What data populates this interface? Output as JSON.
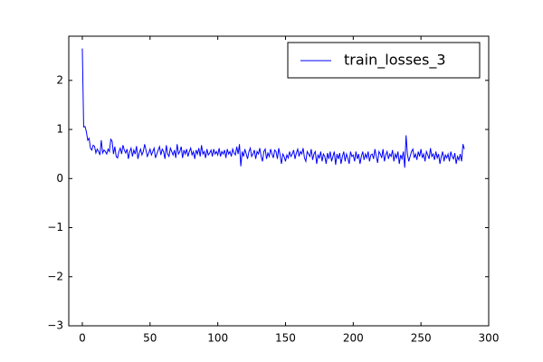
{
  "chart_data": {
    "type": "line",
    "x": [
      0,
      1,
      2,
      3,
      4,
      5,
      6,
      7,
      8,
      9,
      10,
      11,
      12,
      13,
      14,
      15,
      16,
      17,
      18,
      19,
      20,
      21,
      22,
      23,
      24,
      25,
      26,
      27,
      28,
      29,
      30,
      31,
      32,
      33,
      34,
      35,
      36,
      37,
      38,
      39,
      40,
      41,
      42,
      43,
      44,
      45,
      46,
      47,
      48,
      49,
      50,
      51,
      52,
      53,
      54,
      55,
      56,
      57,
      58,
      59,
      60,
      61,
      62,
      63,
      64,
      65,
      66,
      67,
      68,
      69,
      70,
      71,
      72,
      73,
      74,
      75,
      76,
      77,
      78,
      79,
      80,
      81,
      82,
      83,
      84,
      85,
      86,
      87,
      88,
      89,
      90,
      91,
      92,
      93,
      94,
      95,
      96,
      97,
      98,
      99,
      100,
      101,
      102,
      103,
      104,
      105,
      106,
      107,
      108,
      109,
      110,
      111,
      112,
      113,
      114,
      115,
      116,
      117,
      118,
      119,
      120,
      121,
      122,
      123,
      124,
      125,
      126,
      127,
      128,
      129,
      130,
      131,
      132,
      133,
      134,
      135,
      136,
      137,
      138,
      139,
      140,
      141,
      142,
      143,
      144,
      145,
      146,
      147,
      148,
      149,
      150,
      151,
      152,
      153,
      154,
      155,
      156,
      157,
      158,
      159,
      160,
      161,
      162,
      163,
      164,
      165,
      166,
      167,
      168,
      169,
      170,
      171,
      172,
      173,
      174,
      175,
      176,
      177,
      178,
      179,
      180,
      181,
      182,
      183,
      184,
      185,
      186,
      187,
      188,
      189,
      190,
      191,
      192,
      193,
      194,
      195,
      196,
      197,
      198,
      199,
      200,
      201,
      202,
      203,
      204,
      205,
      206,
      207,
      208,
      209,
      210,
      211,
      212,
      213,
      214,
      215,
      216,
      217,
      218,
      219,
      220,
      221,
      222,
      223,
      224,
      225,
      226,
      227,
      228,
      229,
      230,
      231,
      232,
      233,
      234,
      235,
      236,
      237,
      238,
      239,
      240,
      241,
      242,
      243,
      244,
      245,
      246,
      247,
      248,
      249,
      250,
      251,
      252,
      253,
      254,
      255,
      256,
      257,
      258,
      259,
      260,
      261,
      262,
      263,
      264,
      265,
      266,
      267,
      268,
      269,
      270,
      271,
      272,
      273,
      274,
      275,
      276,
      277,
      278,
      279,
      280,
      281,
      282
    ],
    "series": [
      {
        "name": "train_losses_3",
        "color": "#0000ff",
        "values": [
          2.65,
          1.05,
          1.06,
          0.95,
          0.78,
          0.82,
          0.62,
          0.58,
          0.68,
          0.66,
          0.52,
          0.6,
          0.55,
          0.48,
          0.78,
          0.52,
          0.58,
          0.55,
          0.5,
          0.6,
          0.55,
          0.8,
          0.76,
          0.5,
          0.65,
          0.45,
          0.42,
          0.55,
          0.62,
          0.5,
          0.68,
          0.58,
          0.52,
          0.6,
          0.4,
          0.55,
          0.62,
          0.45,
          0.58,
          0.5,
          0.66,
          0.4,
          0.52,
          0.6,
          0.48,
          0.55,
          0.7,
          0.58,
          0.45,
          0.52,
          0.6,
          0.48,
          0.55,
          0.62,
          0.42,
          0.5,
          0.58,
          0.65,
          0.48,
          0.6,
          0.55,
          0.4,
          0.68,
          0.5,
          0.45,
          0.62,
          0.55,
          0.48,
          0.58,
          0.42,
          0.7,
          0.5,
          0.55,
          0.65,
          0.42,
          0.58,
          0.5,
          0.6,
          0.45,
          0.55,
          0.62,
          0.48,
          0.55,
          0.4,
          0.58,
          0.5,
          0.62,
          0.45,
          0.68,
          0.5,
          0.55,
          0.42,
          0.6,
          0.48,
          0.52,
          0.58,
          0.45,
          0.6,
          0.5,
          0.55,
          0.48,
          0.62,
          0.45,
          0.55,
          0.5,
          0.58,
          0.42,
          0.6,
          0.5,
          0.55,
          0.45,
          0.6,
          0.52,
          0.48,
          0.65,
          0.5,
          0.7,
          0.25,
          0.55,
          0.45,
          0.6,
          0.5,
          0.4,
          0.55,
          0.62,
          0.45,
          0.5,
          0.58,
          0.4,
          0.55,
          0.5,
          0.62,
          0.45,
          0.35,
          0.55,
          0.6,
          0.4,
          0.52,
          0.45,
          0.6,
          0.5,
          0.42,
          0.58,
          0.55,
          0.4,
          0.62,
          0.48,
          0.3,
          0.5,
          0.45,
          0.35,
          0.48,
          0.42,
          0.55,
          0.45,
          0.5,
          0.58,
          0.4,
          0.52,
          0.6,
          0.45,
          0.55,
          0.5,
          0.62,
          0.42,
          0.35,
          0.55,
          0.5,
          0.45,
          0.6,
          0.38,
          0.5,
          0.55,
          0.3,
          0.48,
          0.42,
          0.55,
          0.35,
          0.5,
          0.45,
          0.3,
          0.52,
          0.4,
          0.55,
          0.35,
          0.45,
          0.55,
          0.28,
          0.5,
          0.4,
          0.52,
          0.3,
          0.45,
          0.55,
          0.35,
          0.5,
          0.42,
          0.3,
          0.55,
          0.45,
          0.48,
          0.35,
          0.55,
          0.4,
          0.5,
          0.3,
          0.45,
          0.55,
          0.38,
          0.5,
          0.42,
          0.55,
          0.35,
          0.48,
          0.5,
          0.4,
          0.6,
          0.45,
          0.32,
          0.55,
          0.5,
          0.42,
          0.6,
          0.35,
          0.48,
          0.55,
          0.4,
          0.5,
          0.45,
          0.58,
          0.35,
          0.5,
          0.42,
          0.55,
          0.3,
          0.48,
          0.4,
          0.55,
          0.22,
          0.88,
          0.5,
          0.35,
          0.45,
          0.55,
          0.6,
          0.42,
          0.5,
          0.38,
          0.55,
          0.45,
          0.6,
          0.42,
          0.5,
          0.35,
          0.55,
          0.48,
          0.4,
          0.62,
          0.45,
          0.5,
          0.38,
          0.55,
          0.42,
          0.5,
          0.3,
          0.45,
          0.55,
          0.35,
          0.48,
          0.42,
          0.5,
          0.35,
          0.55,
          0.45,
          0.4,
          0.52,
          0.3,
          0.45,
          0.38,
          0.5,
          0.35,
          0.7,
          0.6
        ]
      }
    ],
    "xlim": [
      -10,
      300
    ],
    "xticks": [
      0,
      50,
      100,
      150,
      200,
      250,
      300
    ],
    "ylim": [
      -3,
      2.9
    ],
    "yticks": [
      {
        "value": -3,
        "label": "−3"
      },
      {
        "value": -2,
        "label": "−2"
      },
      {
        "value": -1,
        "label": "−1"
      },
      0,
      1,
      2
    ],
    "legend": "upper right"
  }
}
